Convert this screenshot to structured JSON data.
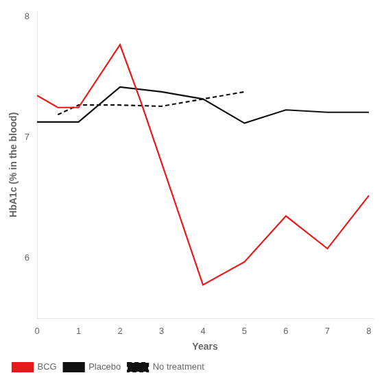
{
  "chart_data": {
    "type": "line",
    "xlabel": "Years",
    "ylabel": "HbA1c (% in the blood)",
    "xlim": [
      0,
      8.1
    ],
    "ylim": [
      5.5,
      8.05
    ],
    "xticks": [
      0,
      1,
      2,
      3,
      4,
      5,
      6,
      7,
      8
    ],
    "yticks": [
      6,
      7,
      8
    ],
    "grid": false,
    "legend": "lower left",
    "series": [
      {
        "name": "BCG",
        "color": "#e8191a",
        "line_style": "solid",
        "x": [
          0,
          0.5,
          1,
          2,
          2.5,
          4,
          5,
          6,
          7,
          8
        ],
        "values": [
          7.35,
          7.25,
          7.25,
          7.77,
          7.3,
          5.78,
          5.97,
          6.35,
          6.08,
          6.52
        ]
      },
      {
        "name": "Placebo",
        "color": "#111111",
        "line_style": "solid",
        "x": [
          0,
          1,
          2,
          3,
          4,
          5,
          6,
          7,
          8
        ],
        "values": [
          7.13,
          7.13,
          7.42,
          7.38,
          7.32,
          7.12,
          7.23,
          7.21,
          7.21
        ]
      },
      {
        "name": "No treatment",
        "color": "#111111",
        "line_style": "dashed",
        "x": [
          0.5,
          1,
          2,
          3,
          4,
          5
        ],
        "values": [
          7.19,
          7.27,
          7.27,
          7.26,
          7.32,
          7.38
        ]
      }
    ]
  }
}
